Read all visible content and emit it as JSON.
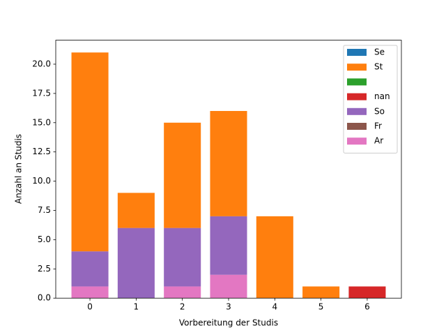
{
  "chart_data": {
    "type": "bar",
    "stacked": true,
    "x_label": "Vorbereitung der Studis",
    "y_label": "Anzahl an Studis",
    "x": [
      0,
      1,
      2,
      3,
      4,
      5,
      6
    ],
    "xlim": [
      -0.74,
      6.74
    ],
    "xticks": [
      0,
      1,
      2,
      3,
      4,
      5,
      6
    ],
    "ylim": [
      0,
      22.05
    ],
    "yticks": [
      {
        "value": 0,
        "label": "0.0"
      },
      2.5,
      {
        "value": 5,
        "label": "5.0"
      },
      7.5,
      {
        "value": 10,
        "label": "10.0"
      },
      12.5,
      {
        "value": 15,
        "label": "15.0"
      },
      17.5,
      {
        "value": 20,
        "label": "20.0"
      }
    ],
    "legend": "upper right",
    "series": [
      {
        "name": "Se",
        "color": "#1f77b4",
        "values": [
          0,
          0,
          0,
          0,
          0,
          0,
          0
        ]
      },
      {
        "name": "St",
        "color": "#ff7f0e",
        "values": [
          17,
          3,
          9,
          9,
          7,
          1,
          0
        ]
      },
      {
        "name": null,
        "color": "#2ca02c",
        "values": [
          0,
          0,
          0,
          0,
          0,
          0,
          0
        ]
      },
      {
        "name": "nan",
        "color": "#d62728",
        "values": [
          0,
          0,
          0,
          0,
          0,
          0,
          1
        ]
      },
      {
        "name": "So",
        "color": "#9467bd",
        "values": [
          3,
          6,
          5,
          5,
          0,
          0,
          0
        ]
      },
      {
        "name": "Fr",
        "color": "#8c564b",
        "values": [
          0,
          0,
          0,
          0,
          0,
          0,
          0
        ]
      },
      {
        "name": "Ar",
        "color": "#e377c2",
        "values": [
          1,
          0,
          1,
          2,
          0,
          0,
          0
        ]
      }
    ]
  }
}
